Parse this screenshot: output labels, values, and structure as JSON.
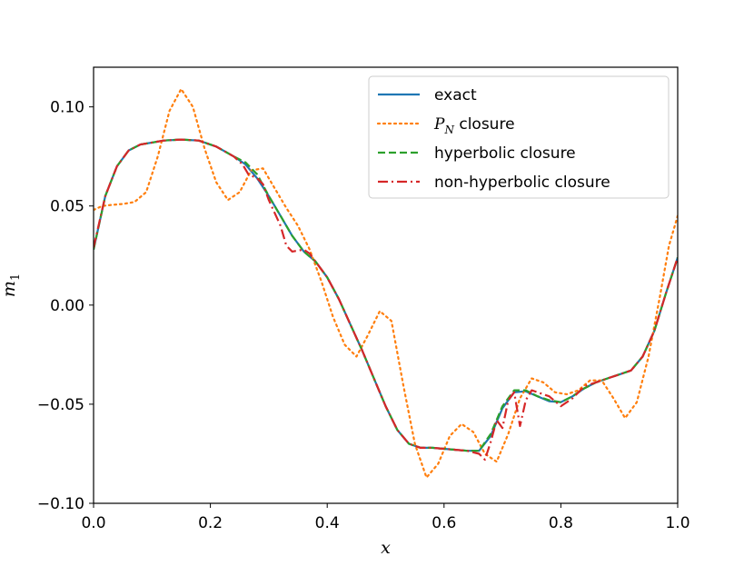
{
  "chart_data": {
    "type": "line",
    "xlabel": "x",
    "ylabel": "m",
    "ylabel_sub": "1",
    "xlim": [
      0.0,
      1.0
    ],
    "ylim": [
      -0.1,
      0.12
    ],
    "xticks": [
      0.0,
      0.2,
      0.4,
      0.6,
      0.8,
      1.0
    ],
    "xtick_labels": [
      "0.0",
      "0.2",
      "0.4",
      "0.6",
      "0.8",
      "1.0"
    ],
    "yticks": [
      -0.1,
      -0.05,
      0.0,
      0.05,
      0.1
    ],
    "ytick_labels": [
      "−0.10",
      "−0.05",
      "0.00",
      "0.05",
      "0.10"
    ],
    "grid": false,
    "legend_position": "top-right",
    "series": [
      {
        "name": "exact",
        "label_main": "exact",
        "label_sub": "",
        "label_tail": "",
        "color": "#1f77b4",
        "style": "solid",
        "x": [
          0.0,
          0.02,
          0.04,
          0.06,
          0.08,
          0.1,
          0.12,
          0.15,
          0.18,
          0.21,
          0.24,
          0.26,
          0.28,
          0.3,
          0.32,
          0.34,
          0.36,
          0.38,
          0.4,
          0.42,
          0.44,
          0.46,
          0.48,
          0.5,
          0.52,
          0.54,
          0.56,
          0.58,
          0.6,
          0.62,
          0.64,
          0.66,
          0.68,
          0.7,
          0.72,
          0.74,
          0.76,
          0.78,
          0.8,
          0.82,
          0.84,
          0.86,
          0.88,
          0.9,
          0.92,
          0.94,
          0.96,
          0.98,
          1.0
        ],
        "y": [
          0.028,
          0.055,
          0.07,
          0.078,
          0.081,
          0.082,
          0.083,
          0.0835,
          0.083,
          0.08,
          0.075,
          0.071,
          0.064,
          0.055,
          0.045,
          0.035,
          0.027,
          0.022,
          0.014,
          0.003,
          -0.01,
          -0.023,
          -0.037,
          -0.051,
          -0.063,
          -0.07,
          -0.072,
          -0.072,
          -0.0725,
          -0.073,
          -0.0735,
          -0.0735,
          -0.066,
          -0.052,
          -0.044,
          -0.0435,
          -0.046,
          -0.0485,
          -0.049,
          -0.046,
          -0.042,
          -0.039,
          -0.037,
          -0.035,
          -0.033,
          -0.026,
          -0.013,
          0.006,
          0.024
        ]
      },
      {
        "name": "P_N closure",
        "label_main": "P",
        "label_sub": "N",
        "label_tail": " closure",
        "color": "#ff7f0e",
        "style": "dotted",
        "x": [
          0.0,
          0.015,
          0.03,
          0.05,
          0.07,
          0.09,
          0.11,
          0.13,
          0.15,
          0.17,
          0.19,
          0.21,
          0.23,
          0.25,
          0.27,
          0.29,
          0.31,
          0.33,
          0.35,
          0.37,
          0.39,
          0.41,
          0.43,
          0.45,
          0.47,
          0.49,
          0.51,
          0.53,
          0.55,
          0.57,
          0.59,
          0.61,
          0.63,
          0.65,
          0.67,
          0.69,
          0.71,
          0.73,
          0.75,
          0.77,
          0.79,
          0.81,
          0.83,
          0.85,
          0.87,
          0.89,
          0.91,
          0.93,
          0.95,
          0.97,
          0.985,
          1.0
        ],
        "y": [
          0.048,
          0.05,
          0.0505,
          0.051,
          0.052,
          0.057,
          0.075,
          0.098,
          0.109,
          0.1,
          0.079,
          0.062,
          0.053,
          0.057,
          0.068,
          0.069,
          0.059,
          0.049,
          0.04,
          0.028,
          0.012,
          -0.006,
          -0.02,
          -0.026,
          -0.015,
          -0.003,
          -0.008,
          -0.04,
          -0.07,
          -0.087,
          -0.08,
          -0.066,
          -0.06,
          -0.064,
          -0.075,
          -0.079,
          -0.065,
          -0.047,
          -0.037,
          -0.039,
          -0.044,
          -0.045,
          -0.043,
          -0.038,
          -0.038,
          -0.047,
          -0.057,
          -0.049,
          -0.026,
          0.005,
          0.03,
          0.045
        ]
      },
      {
        "name": "hyperbolic closure",
        "label_main": "hyperbolic closure",
        "label_sub": "",
        "label_tail": "",
        "color": "#2ca02c",
        "style": "dashed",
        "x": [
          0.0,
          0.02,
          0.04,
          0.06,
          0.08,
          0.1,
          0.12,
          0.15,
          0.18,
          0.21,
          0.24,
          0.26,
          0.28,
          0.3,
          0.32,
          0.34,
          0.36,
          0.38,
          0.4,
          0.42,
          0.44,
          0.46,
          0.48,
          0.5,
          0.52,
          0.54,
          0.56,
          0.58,
          0.6,
          0.62,
          0.64,
          0.66,
          0.68,
          0.7,
          0.72,
          0.74,
          0.76,
          0.78,
          0.8,
          0.82,
          0.84,
          0.86,
          0.88,
          0.9,
          0.92,
          0.94,
          0.96,
          0.98,
          1.0
        ],
        "y": [
          0.028,
          0.055,
          0.07,
          0.078,
          0.081,
          0.082,
          0.083,
          0.0835,
          0.083,
          0.08,
          0.075,
          0.072,
          0.066,
          0.055,
          0.045,
          0.035,
          0.027,
          0.022,
          0.014,
          0.003,
          -0.01,
          -0.023,
          -0.037,
          -0.051,
          -0.063,
          -0.07,
          -0.072,
          -0.072,
          -0.0725,
          -0.073,
          -0.0735,
          -0.0735,
          -0.065,
          -0.051,
          -0.043,
          -0.043,
          -0.046,
          -0.048,
          -0.049,
          -0.046,
          -0.042,
          -0.039,
          -0.037,
          -0.035,
          -0.033,
          -0.026,
          -0.013,
          0.006,
          0.024
        ]
      },
      {
        "name": "non-hyperbolic closure",
        "label_main": "non-hyperbolic closure",
        "label_sub": "",
        "label_tail": "",
        "color": "#d62728",
        "style": "dashdot",
        "x": [
          0.0,
          0.02,
          0.04,
          0.06,
          0.08,
          0.1,
          0.12,
          0.15,
          0.18,
          0.21,
          0.24,
          0.255,
          0.265,
          0.28,
          0.29,
          0.3,
          0.32,
          0.33,
          0.34,
          0.36,
          0.37,
          0.38,
          0.4,
          0.42,
          0.44,
          0.46,
          0.48,
          0.5,
          0.52,
          0.54,
          0.56,
          0.58,
          0.6,
          0.62,
          0.64,
          0.66,
          0.67,
          0.68,
          0.69,
          0.7,
          0.71,
          0.72,
          0.73,
          0.74,
          0.75,
          0.76,
          0.78,
          0.8,
          0.82,
          0.84,
          0.86,
          0.88,
          0.9,
          0.92,
          0.94,
          0.96,
          0.98,
          1.0
        ],
        "y": [
          0.029,
          0.055,
          0.07,
          0.078,
          0.081,
          0.082,
          0.083,
          0.0835,
          0.083,
          0.08,
          0.075,
          0.071,
          0.066,
          0.064,
          0.061,
          0.053,
          0.04,
          0.03,
          0.027,
          0.028,
          0.026,
          0.022,
          0.014,
          0.003,
          -0.01,
          -0.023,
          -0.037,
          -0.051,
          -0.063,
          -0.07,
          -0.072,
          -0.072,
          -0.0725,
          -0.073,
          -0.0735,
          -0.075,
          -0.078,
          -0.069,
          -0.058,
          -0.062,
          -0.048,
          -0.044,
          -0.061,
          -0.048,
          -0.043,
          -0.044,
          -0.046,
          -0.051,
          -0.047,
          -0.041,
          -0.039,
          -0.037,
          -0.035,
          -0.033,
          -0.026,
          -0.013,
          0.006,
          0.024
        ]
      }
    ]
  }
}
